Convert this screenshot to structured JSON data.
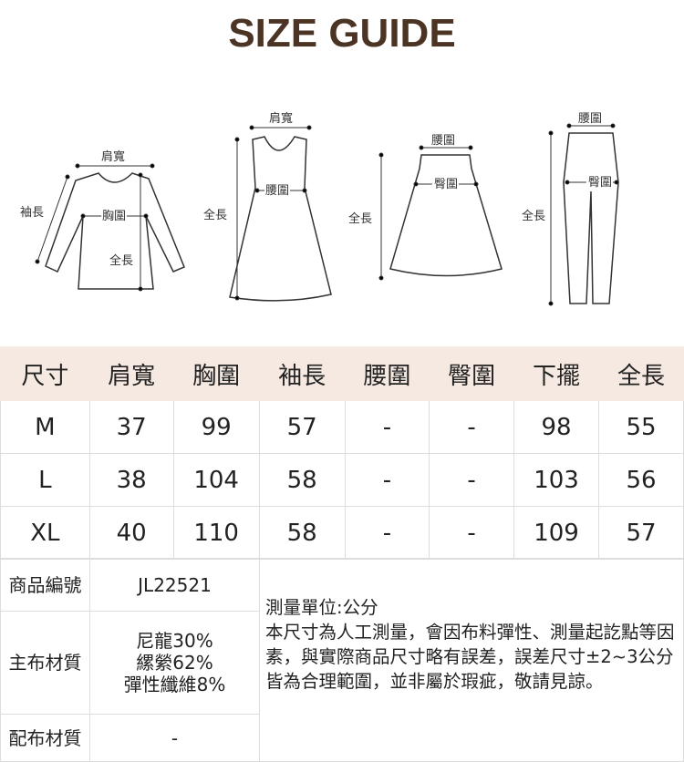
{
  "title": "SIZE GUIDE",
  "diagrams": {
    "top": {
      "shoulder": "肩寬",
      "sleeve": "袖長",
      "chest": "胸圍",
      "length": "全長"
    },
    "dress": {
      "shoulder": "肩寬",
      "waist": "腰圍",
      "length": "全長"
    },
    "skirt": {
      "waist": "腰圍",
      "hip": "臀圍",
      "length": "全長"
    },
    "pants": {
      "waist": "腰圍",
      "hip": "臀圍",
      "length": "全長"
    }
  },
  "table": {
    "headers": [
      "尺寸",
      "肩寬",
      "胸圍",
      "袖長",
      "腰圍",
      "臀圍",
      "下擺",
      "全長"
    ],
    "rows": [
      [
        "M",
        "37",
        "99",
        "57",
        "-",
        "-",
        "98",
        "55"
      ],
      [
        "L",
        "38",
        "104",
        "58",
        "-",
        "-",
        "103",
        "56"
      ],
      [
        "XL",
        "40",
        "110",
        "58",
        "-",
        "-",
        "109",
        "57"
      ]
    ]
  },
  "info": {
    "product_no_label": "商品編號",
    "product_no": "JL22521",
    "main_material_label": "主布材質",
    "main_material": [
      "尼龍30%",
      "縲縈62%",
      "彈性纖維8%"
    ],
    "sub_material_label": "配布材質",
    "sub_material": "-",
    "unit": "測量單位:公分",
    "note": "本尺寸為人工測量，會因布料彈性、測量起訖點等因素，與實際商品尺寸略有誤差，誤差尺寸±2~3公分皆為合理範圍，並非屬於瑕疵，敬請見諒。"
  },
  "colors": {
    "title": "#4b3424",
    "header_bg": "#f6e9e1"
  }
}
